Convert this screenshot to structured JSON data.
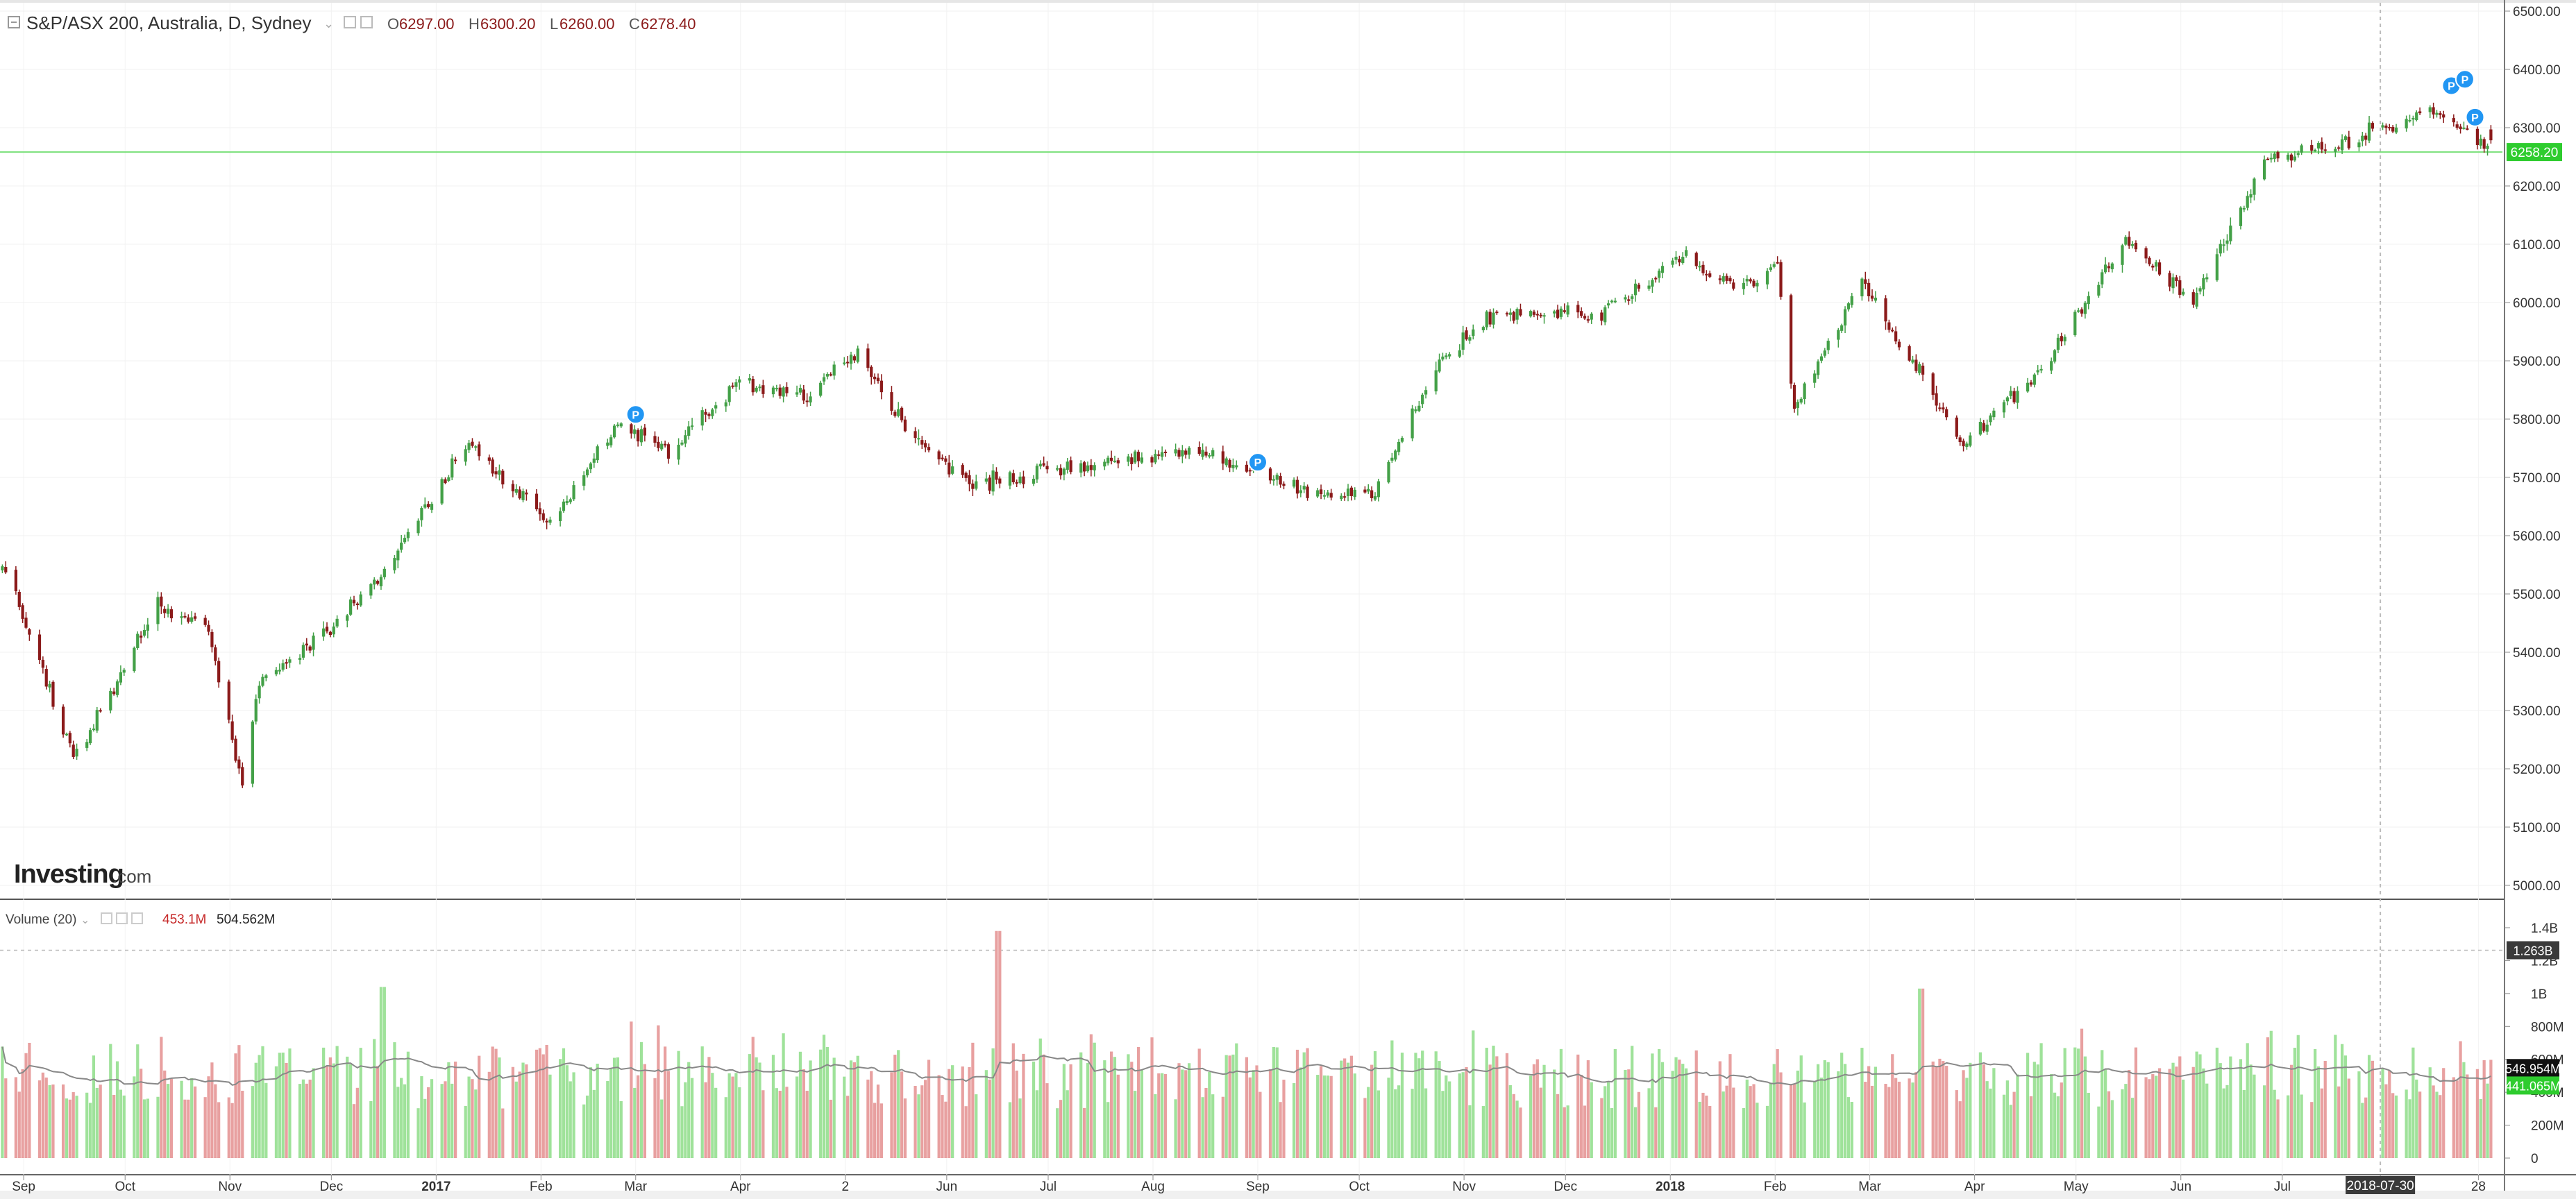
{
  "header": {
    "symbol_label": "S&P/ASX 200, Australia, D, Sydney",
    "ohlc": [
      {
        "key": "O",
        "value": "6297.00"
      },
      {
        "key": "H",
        "value": "6300.20"
      },
      {
        "key": "L",
        "value": "6260.00"
      },
      {
        "key": "C",
        "value": "6278.40"
      }
    ]
  },
  "brand": {
    "name": "Investing",
    "suffix": ".com"
  },
  "price_pane": {
    "y_ticks": [
      "6500.00",
      "6400.00",
      "6300.00",
      "6200.00",
      "6100.00",
      "6000.00",
      "5900.00",
      "5800.00",
      "5700.00",
      "5600.00",
      "5500.00",
      "5400.00",
      "5300.00",
      "5200.00",
      "5100.00",
      "5000.00"
    ],
    "current_price_label": "6258.20",
    "current_price": 6258.2
  },
  "volume_pane": {
    "legend_label": "Volume (20)",
    "legend_value_1": "453.1M",
    "legend_value_2": "504.562M",
    "y_ticks": [
      "1.4B",
      "1.2B",
      "1B",
      "800M",
      "600M",
      "400M",
      "200M",
      "0"
    ],
    "y_tick_values": [
      1400,
      1200,
      1000,
      800,
      600,
      400,
      200,
      0
    ],
    "badges": [
      {
        "label": "1.263B",
        "value": 1263
      },
      {
        "label": "546.954M",
        "value": 547
      },
      {
        "label": "441.065M",
        "value": 441
      }
    ]
  },
  "x_axis": {
    "labels": [
      "Sep",
      "Oct",
      "Nov",
      "Dec",
      "2017",
      "Feb",
      "Mar",
      "Apr",
      "2",
      "Jun",
      "Jul",
      "Aug",
      "Sep",
      "Oct",
      "Nov",
      "Dec",
      "2018",
      "Feb",
      "Mar",
      "Apr",
      "May",
      "Jun",
      "Jul",
      "2018-07-30",
      "28"
    ],
    "label_dates": [
      "2016-09-01",
      "2016-10-01",
      "2016-11-01",
      "2016-12-01",
      "2017-01-01",
      "2017-02-01",
      "2017-03-01",
      "2017-04-01",
      "2017-05-02",
      "2017-06-01",
      "2017-07-01",
      "2017-08-01",
      "2017-09-01",
      "2017-10-01",
      "2017-11-01",
      "2017-12-01",
      "2018-01-01",
      "2018-02-01",
      "2018-03-01",
      "2018-04-01",
      "2018-05-01",
      "2018-06-01",
      "2018-07-01",
      "2018-07-30",
      "2018-08-28"
    ],
    "highlighted": "2018-07-30"
  },
  "colors": {
    "up": "#26a69a",
    "up_candle": "#43a047",
    "down": "#8b1a1a",
    "vol_up": "#9fe29a",
    "vol_down": "#e8a0a0",
    "price_line": "#7ae07a",
    "badge_green": "#2ecc2e",
    "badge_dark": "#3a3a3a",
    "marker_blue": "#2196f3",
    "ohlc_value": "#8b1a1a"
  },
  "chart_data": [
    {
      "type": "candlestick",
      "title": "S&P/ASX 200, Australia, D, Sydney",
      "x_start": "2016-08-25",
      "x_end": "2018-08-31",
      "ylim": [
        5000,
        6500
      ],
      "ohlc_last": {
        "open": 6297.0,
        "high": 6300.2,
        "low": 6260.0,
        "close": 6278.4
      },
      "close_waypoints": [
        {
          "x": "2016-08-26",
          "y": 5540
        },
        {
          "x": "2016-09-15",
          "y": 5220
        },
        {
          "x": "2016-10-10",
          "y": 5480
        },
        {
          "x": "2016-10-25",
          "y": 5440
        },
        {
          "x": "2016-11-04",
          "y": 5160
        },
        {
          "x": "2016-11-09",
          "y": 5350
        },
        {
          "x": "2016-11-28",
          "y": 5430
        },
        {
          "x": "2016-12-16",
          "y": 5540
        },
        {
          "x": "2017-01-10",
          "y": 5760
        },
        {
          "x": "2017-02-03",
          "y": 5620
        },
        {
          "x": "2017-02-24",
          "y": 5800
        },
        {
          "x": "2017-03-10",
          "y": 5740
        },
        {
          "x": "2017-03-30",
          "y": 5860
        },
        {
          "x": "2017-04-20",
          "y": 5840
        },
        {
          "x": "2017-05-05",
          "y": 5920
        },
        {
          "x": "2017-05-20",
          "y": 5770
        },
        {
          "x": "2017-06-09",
          "y": 5690
        },
        {
          "x": "2017-07-10",
          "y": 5720
        },
        {
          "x": "2017-08-15",
          "y": 5750
        },
        {
          "x": "2017-09-15",
          "y": 5680
        },
        {
          "x": "2017-10-05",
          "y": 5670
        },
        {
          "x": "2017-10-25",
          "y": 5910
        },
        {
          "x": "2017-11-10",
          "y": 5980
        },
        {
          "x": "2017-12-10",
          "y": 5980
        },
        {
          "x": "2018-01-05",
          "y": 6080
        },
        {
          "x": "2018-01-17",
          "y": 6030
        },
        {
          "x": "2018-02-01",
          "y": 6060
        },
        {
          "x": "2018-02-06",
          "y": 5820
        },
        {
          "x": "2018-02-26",
          "y": 6040
        },
        {
          "x": "2018-03-09",
          "y": 5930
        },
        {
          "x": "2018-03-28",
          "y": 5760
        },
        {
          "x": "2018-04-20",
          "y": 5880
        },
        {
          "x": "2018-05-15",
          "y": 6110
        },
        {
          "x": "2018-06-04",
          "y": 6000
        },
        {
          "x": "2018-06-25",
          "y": 6240
        },
        {
          "x": "2018-07-15",
          "y": 6270
        },
        {
          "x": "2018-08-15",
          "y": 6330
        },
        {
          "x": "2018-08-31",
          "y": 6258
        }
      ],
      "markers": [
        {
          "x": "2017-03-01",
          "y": 5808,
          "label": "P"
        },
        {
          "x": "2017-09-01",
          "y": 5726,
          "label": "P"
        },
        {
          "x": "2018-08-20",
          "y": 6372,
          "label": "P"
        },
        {
          "x": "2018-08-24",
          "y": 6383,
          "label": "P"
        },
        {
          "x": "2018-08-27",
          "y": 6318,
          "label": "P"
        }
      ]
    },
    {
      "type": "bar",
      "title": "Volume (20)",
      "ylabel": "Volume",
      "ylim": [
        0,
        1500
      ],
      "units": "M",
      "moving_average_period": 20,
      "typical_range": [
        250,
        900
      ],
      "spikes": [
        {
          "x": "2017-06-16",
          "y": 1380
        },
        {
          "x": "2016-12-16",
          "y": 1040
        },
        {
          "x": "2018-03-16",
          "y": 1030
        }
      ]
    }
  ]
}
